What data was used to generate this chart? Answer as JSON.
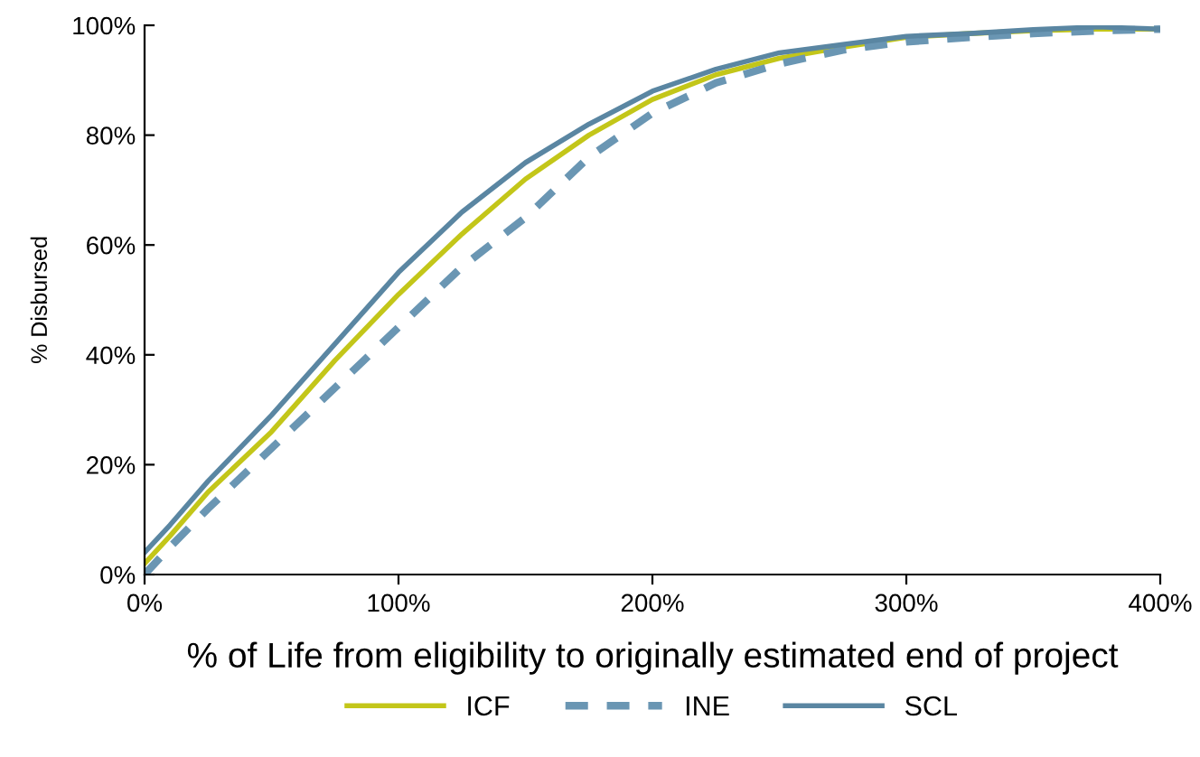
{
  "chart_data": {
    "type": "line",
    "xlabel": "% of Life from eligibility to originally estimated end of project",
    "ylabel": "% Disbursed",
    "x": [
      0,
      10,
      25,
      50,
      75,
      100,
      125,
      150,
      175,
      200,
      225,
      250,
      275,
      300,
      325,
      350,
      375,
      400
    ],
    "series": [
      {
        "name": "ICF",
        "color": "#c3c619",
        "line_style": "solid",
        "values": [
          2,
          7,
          15,
          26,
          39,
          51,
          62,
          72,
          80,
          86.5,
          91,
          94,
          96,
          97.8,
          98.5,
          99,
          99.3,
          99.3
        ]
      },
      {
        "name": "INE",
        "color": "#6a96b3",
        "line_style": "dashed",
        "values": [
          0,
          5,
          12,
          23,
          34,
          45,
          56,
          65,
          76,
          84,
          89.5,
          93,
          95.5,
          97,
          97.8,
          98.5,
          99,
          99.3
        ]
      },
      {
        "name": "SCL",
        "color": "#5a86a2",
        "line_style": "solid",
        "values": [
          4,
          9,
          17,
          29,
          42,
          55,
          66,
          75,
          82,
          88,
          92,
          95,
          96.5,
          98,
          98.5,
          99.2,
          99.7,
          99.3
        ]
      }
    ],
    "xlim": [
      0,
      400
    ],
    "ylim": [
      0,
      100
    ],
    "xticks": [
      {
        "value": 0,
        "label": "0%"
      },
      {
        "value": 100,
        "label": "100%"
      },
      {
        "value": 200,
        "label": "200%"
      },
      {
        "value": 300,
        "label": "300%"
      },
      {
        "value": 400,
        "label": "400%"
      }
    ],
    "yticks": [
      {
        "value": 0,
        "label": "0%"
      },
      {
        "value": 20,
        "label": "20%"
      },
      {
        "value": 40,
        "label": "40%"
      },
      {
        "value": 60,
        "label": "60%"
      },
      {
        "value": 80,
        "label": "80%"
      },
      {
        "value": 100,
        "label": "100%"
      }
    ],
    "grid": false,
    "legend": "bottom"
  }
}
